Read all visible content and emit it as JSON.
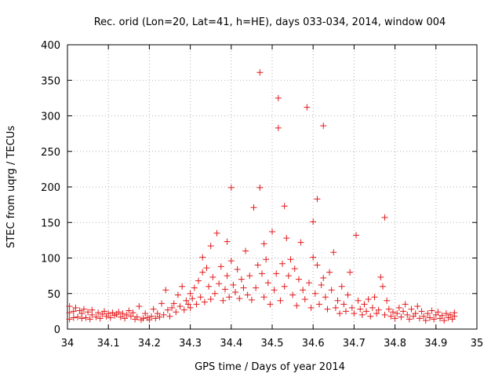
{
  "chart_data": {
    "type": "scatter",
    "title": "Rec. orid (Lon=20, Lat=41, h=HE), days 033-034, 2014, window 004",
    "xlabel": "GPS time / Days of year 2014",
    "ylabel": "STEC from uqrg / TECUs",
    "xlim": [
      34,
      35
    ],
    "ylim": [
      0,
      400
    ],
    "xticks": [
      34,
      34.1,
      34.2,
      34.3,
      34.4,
      34.5,
      34.6,
      34.7,
      34.8,
      34.9,
      35
    ],
    "xtick_labels": [
      "34",
      "34.1",
      "34.2",
      "34.3",
      "34.4",
      "34.5",
      "34.6",
      "34.7",
      "34.8",
      "34.9",
      "35"
    ],
    "yticks": [
      0,
      50,
      100,
      150,
      200,
      250,
      300,
      350,
      400
    ],
    "ytick_labels": [
      "0",
      "50",
      "100",
      "150",
      "200",
      "250",
      "300",
      "350",
      "400"
    ],
    "grid": true,
    "marker": "+",
    "marker_color": "#e41a1c",
    "points": [
      [
        34.005,
        14
      ],
      [
        34.005,
        23
      ],
      [
        34.005,
        32
      ],
      [
        34.015,
        16
      ],
      [
        34.015,
        25
      ],
      [
        34.02,
        30
      ],
      [
        34.025,
        17
      ],
      [
        34.03,
        26
      ],
      [
        34.035,
        15
      ],
      [
        34.035,
        22
      ],
      [
        34.04,
        28
      ],
      [
        34.045,
        16
      ],
      [
        34.05,
        24
      ],
      [
        34.055,
        14
      ],
      [
        34.06,
        20
      ],
      [
        34.06,
        27
      ],
      [
        34.07,
        17
      ],
      [
        34.075,
        23
      ],
      [
        34.08,
        15
      ],
      [
        34.085,
        21
      ],
      [
        34.09,
        25
      ],
      [
        34.095,
        18
      ],
      [
        34.1,
        22
      ],
      [
        34.105,
        16
      ],
      [
        34.11,
        23
      ],
      [
        34.115,
        19
      ],
      [
        34.12,
        21
      ],
      [
        34.125,
        24
      ],
      [
        34.13,
        17
      ],
      [
        34.135,
        22
      ],
      [
        34.14,
        15
      ],
      [
        34.145,
        20
      ],
      [
        34.15,
        26
      ],
      [
        34.155,
        18
      ],
      [
        34.16,
        23
      ],
      [
        34.165,
        14
      ],
      [
        34.17,
        17
      ],
      [
        34.175,
        32
      ],
      [
        34.18,
        13
      ],
      [
        34.185,
        15
      ],
      [
        34.19,
        22
      ],
      [
        34.195,
        16
      ],
      [
        34.2,
        13
      ],
      [
        34.205,
        18
      ],
      [
        34.21,
        28
      ],
      [
        34.215,
        15
      ],
      [
        34.22,
        22
      ],
      [
        34.225,
        17
      ],
      [
        34.23,
        36
      ],
      [
        34.235,
        20
      ],
      [
        34.24,
        55
      ],
      [
        34.245,
        27
      ],
      [
        34.25,
        18
      ],
      [
        34.255,
        30
      ],
      [
        34.26,
        36
      ],
      [
        34.265,
        24
      ],
      [
        34.27,
        48
      ],
      [
        34.275,
        32
      ],
      [
        34.28,
        60
      ],
      [
        34.285,
        27
      ],
      [
        34.29,
        40
      ],
      [
        34.295,
        35
      ],
      [
        34.3,
        50
      ],
      [
        34.3,
        30
      ],
      [
        34.305,
        43
      ],
      [
        34.31,
        58
      ],
      [
        34.315,
        35
      ],
      [
        34.32,
        68
      ],
      [
        34.325,
        45
      ],
      [
        34.33,
        101
      ],
      [
        34.33,
        80
      ],
      [
        34.335,
        38
      ],
      [
        34.34,
        86
      ],
      [
        34.345,
        60
      ],
      [
        34.35,
        117
      ],
      [
        34.35,
        42
      ],
      [
        34.355,
        73
      ],
      [
        34.36,
        50
      ],
      [
        34.365,
        135
      ],
      [
        34.37,
        64
      ],
      [
        34.375,
        88
      ],
      [
        34.38,
        40
      ],
      [
        34.385,
        56
      ],
      [
        34.39,
        123
      ],
      [
        34.39,
        75
      ],
      [
        34.395,
        45
      ],
      [
        34.4,
        199
      ],
      [
        34.4,
        96
      ],
      [
        34.405,
        62
      ],
      [
        34.41,
        52
      ],
      [
        34.415,
        84
      ],
      [
        34.42,
        43
      ],
      [
        34.425,
        70
      ],
      [
        34.43,
        58
      ],
      [
        34.435,
        110
      ],
      [
        34.44,
        48
      ],
      [
        34.445,
        75
      ],
      [
        34.45,
        41
      ],
      [
        34.455,
        171
      ],
      [
        34.46,
        58
      ],
      [
        34.465,
        90
      ],
      [
        34.47,
        361
      ],
      [
        34.47,
        199
      ],
      [
        34.475,
        78
      ],
      [
        34.48,
        120
      ],
      [
        34.48,
        45
      ],
      [
        34.485,
        98
      ],
      [
        34.49,
        65
      ],
      [
        34.495,
        35
      ],
      [
        34.5,
        137
      ],
      [
        34.505,
        55
      ],
      [
        34.51,
        78
      ],
      [
        34.515,
        325
      ],
      [
        34.515,
        283
      ],
      [
        34.52,
        40
      ],
      [
        34.525,
        92
      ],
      [
        34.53,
        173
      ],
      [
        34.53,
        60
      ],
      [
        34.535,
        128
      ],
      [
        34.54,
        75
      ],
      [
        34.545,
        98
      ],
      [
        34.55,
        48
      ],
      [
        34.555,
        85
      ],
      [
        34.56,
        33
      ],
      [
        34.565,
        70
      ],
      [
        34.57,
        122
      ],
      [
        34.575,
        55
      ],
      [
        34.58,
        42
      ],
      [
        34.585,
        312
      ],
      [
        34.59,
        65
      ],
      [
        34.595,
        30
      ],
      [
        34.6,
        151
      ],
      [
        34.6,
        101
      ],
      [
        34.605,
        50
      ],
      [
        34.61,
        183
      ],
      [
        34.61,
        90
      ],
      [
        34.615,
        35
      ],
      [
        34.62,
        62
      ],
      [
        34.625,
        286
      ],
      [
        34.625,
        72
      ],
      [
        34.63,
        45
      ],
      [
        34.635,
        28
      ],
      [
        34.64,
        80
      ],
      [
        34.645,
        55
      ],
      [
        34.65,
        108
      ],
      [
        34.655,
        30
      ],
      [
        34.66,
        40
      ],
      [
        34.665,
        22
      ],
      [
        34.67,
        60
      ],
      [
        34.675,
        35
      ],
      [
        34.68,
        25
      ],
      [
        34.685,
        48
      ],
      [
        34.69,
        80
      ],
      [
        34.695,
        30
      ],
      [
        34.7,
        22
      ],
      [
        34.705,
        132
      ],
      [
        34.71,
        40
      ],
      [
        34.715,
        28
      ],
      [
        34.72,
        20
      ],
      [
        34.725,
        35
      ],
      [
        34.73,
        25
      ],
      [
        34.735,
        42
      ],
      [
        34.74,
        18
      ],
      [
        34.745,
        30
      ],
      [
        34.75,
        45
      ],
      [
        34.755,
        22
      ],
      [
        34.76,
        27
      ],
      [
        34.765,
        73
      ],
      [
        34.77,
        60
      ],
      [
        34.775,
        157
      ],
      [
        34.775,
        20
      ],
      [
        34.78,
        40
      ],
      [
        34.785,
        28
      ],
      [
        34.79,
        18
      ],
      [
        34.795,
        24
      ],
      [
        34.8,
        15
      ],
      [
        34.805,
        22
      ],
      [
        34.81,
        30
      ],
      [
        34.815,
        17
      ],
      [
        34.82,
        25
      ],
      [
        34.825,
        35
      ],
      [
        34.83,
        20
      ],
      [
        34.835,
        14
      ],
      [
        34.84,
        28
      ],
      [
        34.845,
        18
      ],
      [
        34.85,
        22
      ],
      [
        34.855,
        32
      ],
      [
        34.86,
        15
      ],
      [
        34.865,
        25
      ],
      [
        34.87,
        18
      ],
      [
        34.875,
        12
      ],
      [
        34.88,
        22
      ],
      [
        34.885,
        16
      ],
      [
        34.89,
        26
      ],
      [
        34.895,
        14
      ],
      [
        34.9,
        20
      ],
      [
        34.905,
        24
      ],
      [
        34.91,
        15
      ],
      [
        34.915,
        19
      ],
      [
        34.92,
        12
      ],
      [
        34.925,
        22
      ],
      [
        34.93,
        16
      ],
      [
        34.935,
        20
      ],
      [
        34.94,
        14
      ],
      [
        34.945,
        18
      ],
      [
        34.945,
        23
      ]
    ]
  }
}
